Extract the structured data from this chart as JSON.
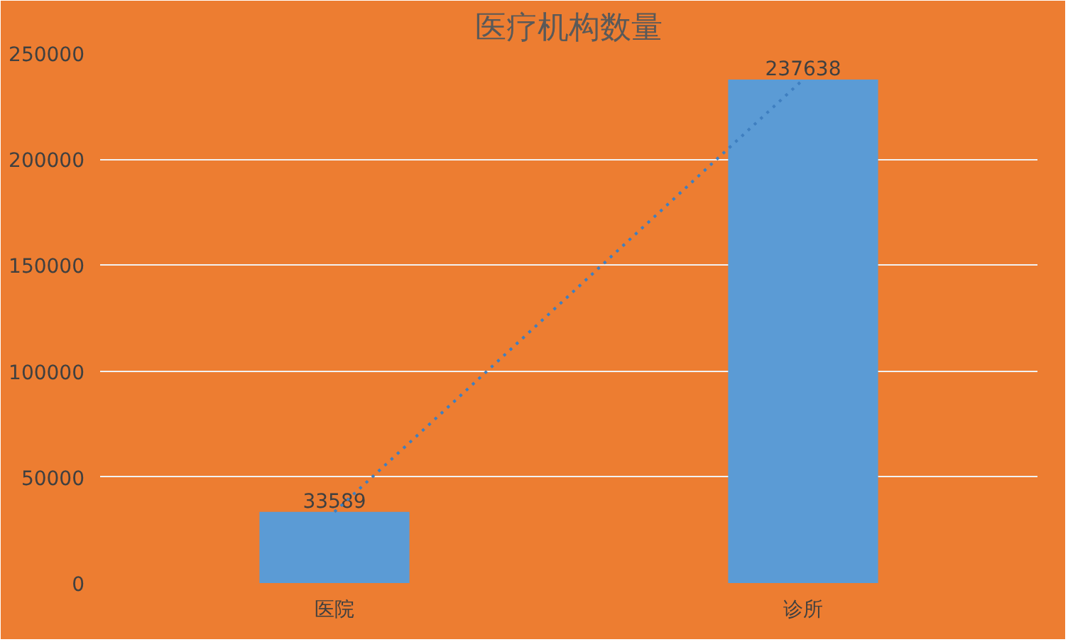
{
  "chart_data": {
    "type": "bar",
    "title": "医疗机构数量",
    "categories": [
      "医院",
      "诊所"
    ],
    "series": [
      {
        "color": "#5b9bd5",
        "values": [
          33589,
          237638
        ],
        "value_labels": [
          "33589",
          "237638"
        ]
      },
      {
        "type": "line",
        "color": "#3f7fc0",
        "line_style": "dotted",
        "values": [
          33600,
          237600
        ]
      }
    ],
    "ylim": [
      0,
      250000
    ],
    "yticks": [
      0,
      50000,
      100000,
      150000,
      200000,
      250000
    ],
    "grid": "y"
  }
}
